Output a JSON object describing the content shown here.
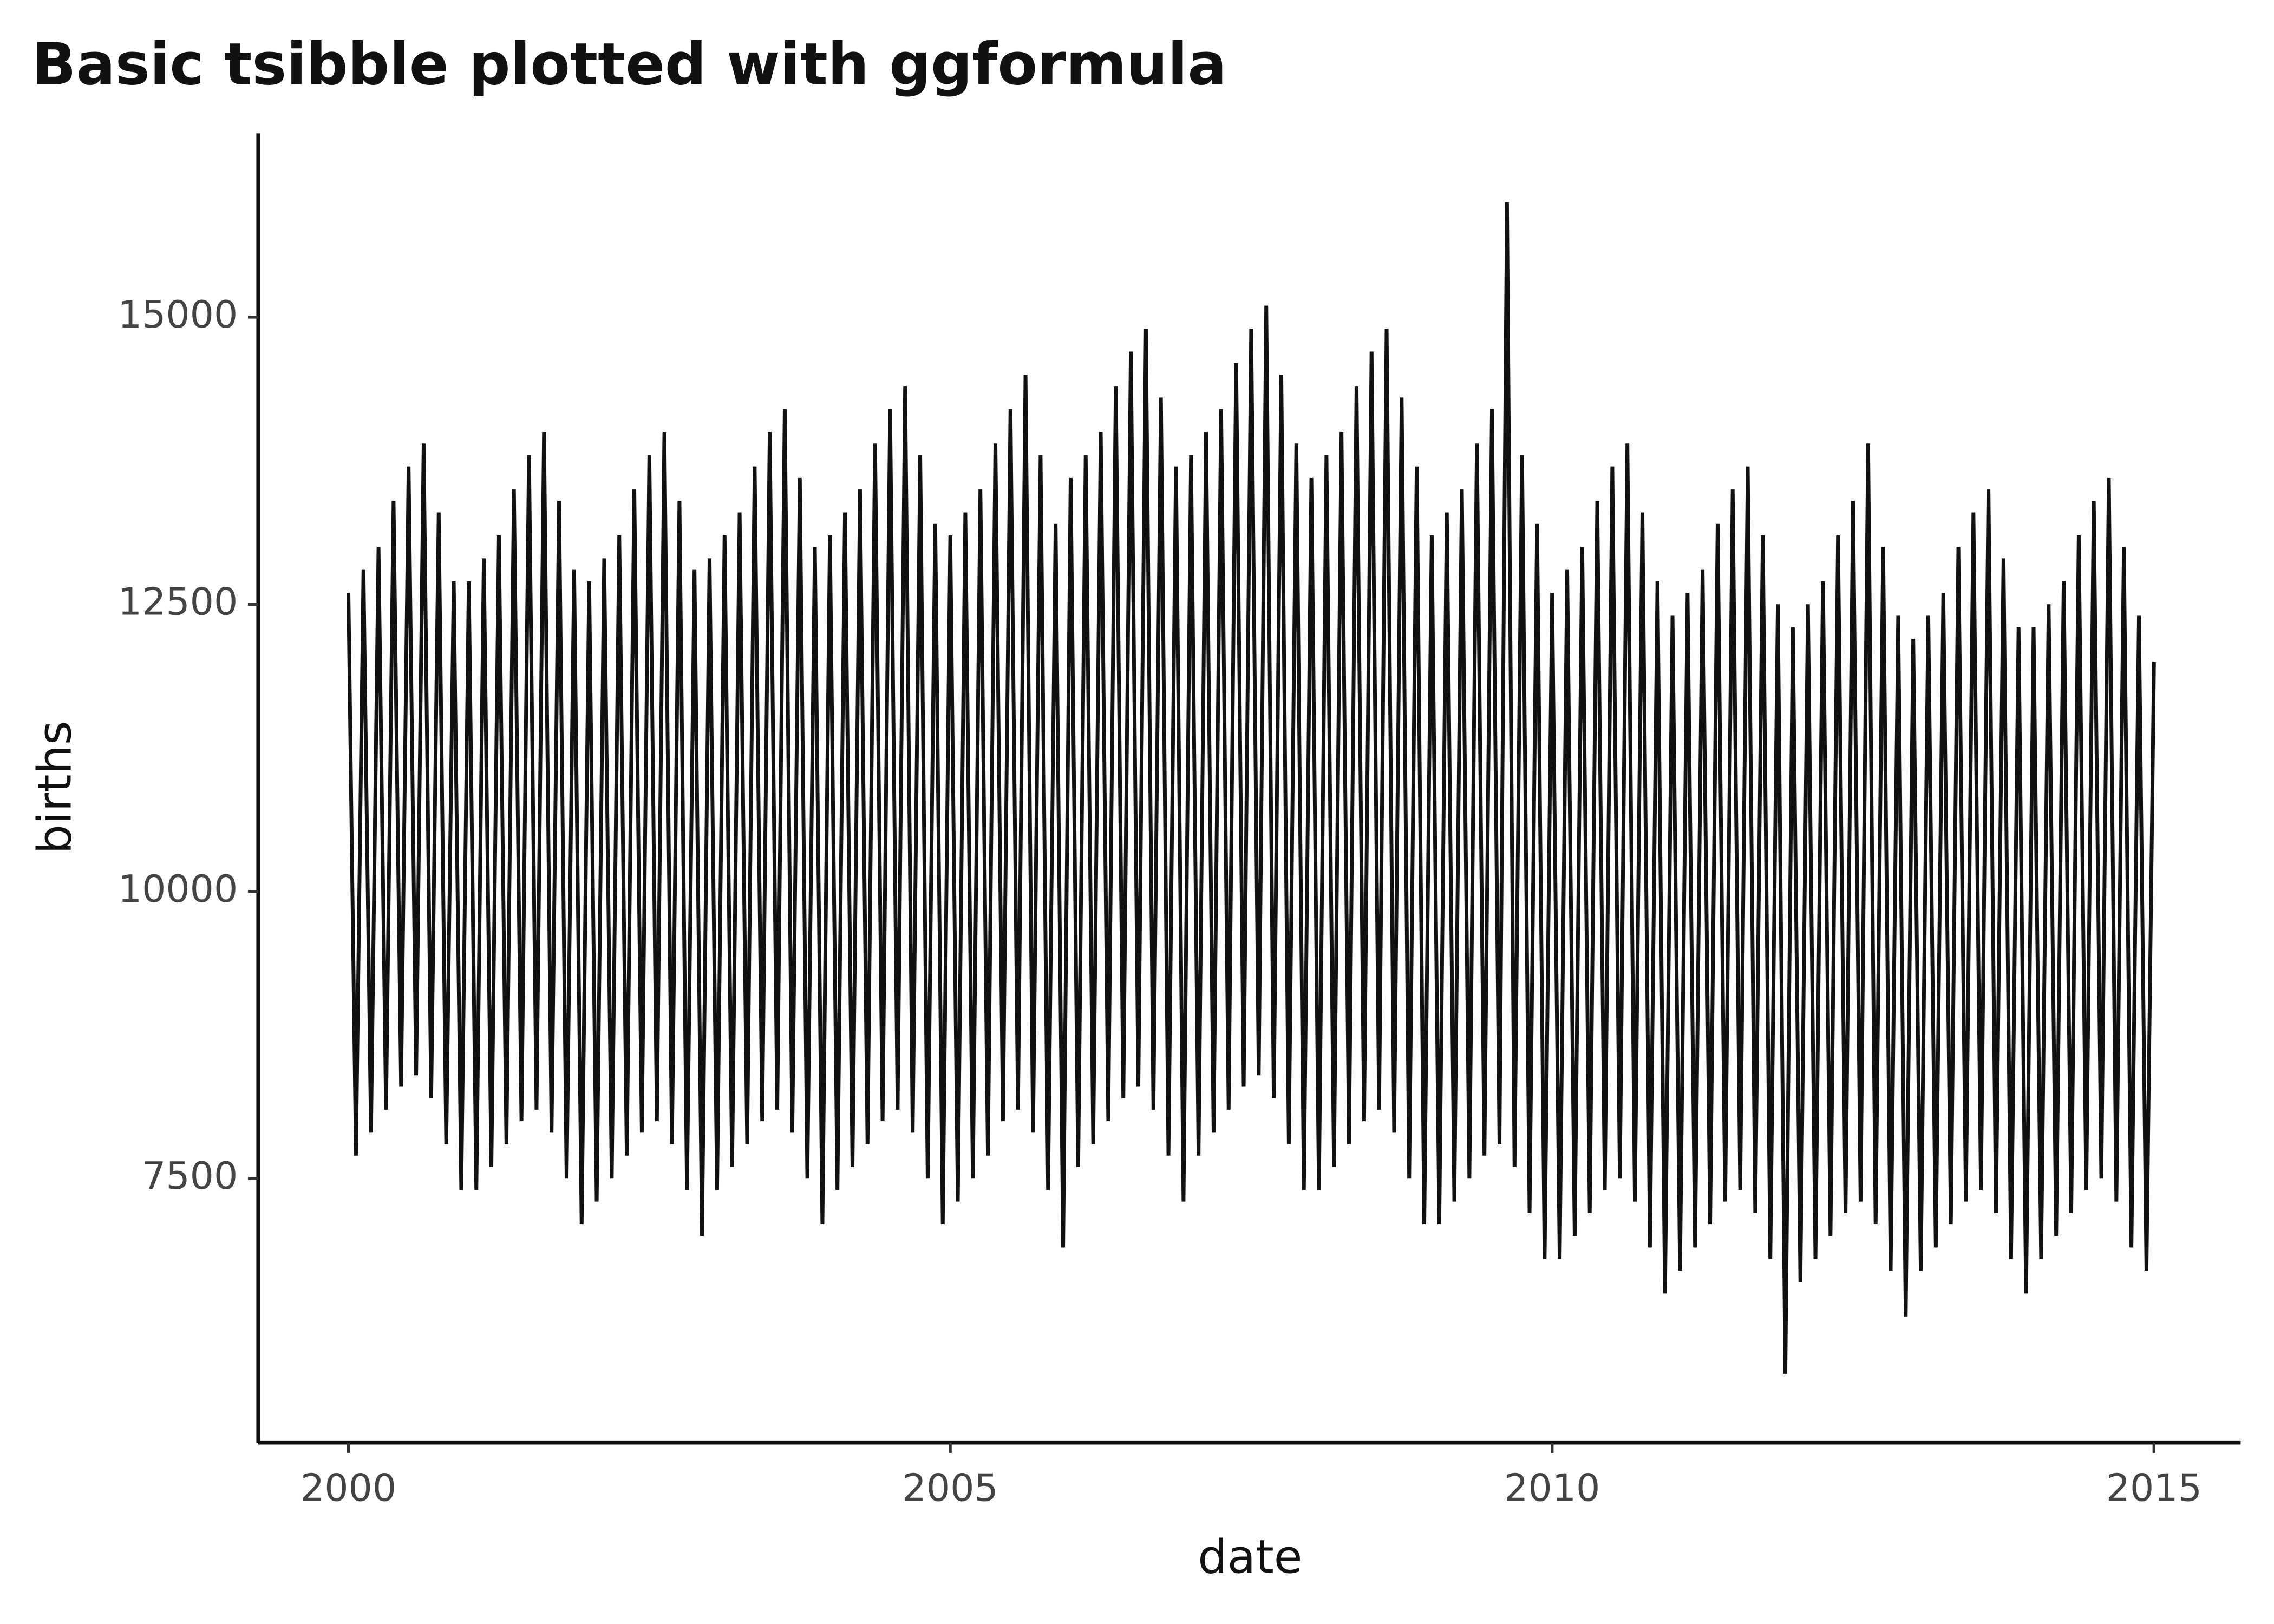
{
  "chart_data": {
    "type": "line",
    "title": "Basic tsibble plotted with ggformula",
    "x_label": "date",
    "y_label": "births",
    "color": "#111111",
    "xlim": [
      1999.25,
      2015.72
    ],
    "ylim": [
      5200,
      16600
    ],
    "xticks": [
      2000,
      2005,
      2010,
      2015
    ],
    "yticks": [
      7500,
      10000,
      12500,
      15000
    ],
    "grid": false,
    "x": [
      2000,
      2000.0625,
      2000.125,
      2000.1875,
      2000.25,
      2000.3125,
      2000.375,
      2000.4375,
      2000.5,
      2000.5625,
      2000.625,
      2000.6875,
      2000.75,
      2000.8125,
      2000.875,
      2000.9375,
      2001,
      2001.0625,
      2001.125,
      2001.1875,
      2001.25,
      2001.3125,
      2001.375,
      2001.4375,
      2001.5,
      2001.5625,
      2001.625,
      2001.6875,
      2001.75,
      2001.8125,
      2001.875,
      2001.9375,
      2002,
      2002.0625,
      2002.125,
      2002.1875,
      2002.25,
      2002.3125,
      2002.375,
      2002.4375,
      2002.5,
      2002.5625,
      2002.625,
      2002.6875,
      2002.75,
      2002.8125,
      2002.875,
      2002.9375,
      2003,
      2003.0625,
      2003.125,
      2003.1875,
      2003.25,
      2003.3125,
      2003.375,
      2003.4375,
      2003.5,
      2003.5625,
      2003.625,
      2003.6875,
      2003.75,
      2003.8125,
      2003.875,
      2003.9375,
      2004,
      2004.0625,
      2004.125,
      2004.1875,
      2004.25,
      2004.3125,
      2004.375,
      2004.4375,
      2004.5,
      2004.5625,
      2004.625,
      2004.6875,
      2004.75,
      2004.8125,
      2004.875,
      2004.9375,
      2005,
      2005.0625,
      2005.125,
      2005.1875,
      2005.25,
      2005.3125,
      2005.375,
      2005.4375,
      2005.5,
      2005.5625,
      2005.625,
      2005.6875,
      2005.75,
      2005.8125,
      2005.875,
      2005.9375,
      2006,
      2006.0625,
      2006.125,
      2006.1875,
      2006.25,
      2006.3125,
      2006.375,
      2006.4375,
      2006.5,
      2006.5625,
      2006.625,
      2006.6875,
      2006.75,
      2006.8125,
      2006.875,
      2006.9375,
      2007,
      2007.0625,
      2007.125,
      2007.1875,
      2007.25,
      2007.3125,
      2007.375,
      2007.4375,
      2007.5,
      2007.5625,
      2007.625,
      2007.6875,
      2007.75,
      2007.8125,
      2007.875,
      2007.9375,
      2008,
      2008.0625,
      2008.125,
      2008.1875,
      2008.25,
      2008.3125,
      2008.375,
      2008.4375,
      2008.5,
      2008.5625,
      2008.625,
      2008.6875,
      2008.75,
      2008.8125,
      2008.875,
      2008.9375,
      2009,
      2009.0625,
      2009.125,
      2009.1875,
      2009.25,
      2009.3125,
      2009.375,
      2009.4375,
      2009.5,
      2009.5625,
      2009.625,
      2009.6875,
      2009.75,
      2009.8125,
      2009.875,
      2009.9375,
      2010,
      2010.0625,
      2010.125,
      2010.1875,
      2010.25,
      2010.3125,
      2010.375,
      2010.4375,
      2010.5,
      2010.5625,
      2010.625,
      2010.6875,
      2010.75,
      2010.8125,
      2010.875,
      2010.9375,
      2011,
      2011.0625,
      2011.125,
      2011.1875,
      2011.25,
      2011.3125,
      2011.375,
      2011.4375,
      2011.5,
      2011.5625,
      2011.625,
      2011.6875,
      2011.75,
      2011.8125,
      2011.875,
      2011.9375,
      2012,
      2012.0625,
      2012.125,
      2012.1875,
      2012.25,
      2012.3125,
      2012.375,
      2012.4375,
      2012.5,
      2012.5625,
      2012.625,
      2012.6875,
      2012.75,
      2012.8125,
      2012.875,
      2012.9375,
      2013,
      2013.0625,
      2013.125,
      2013.1875,
      2013.25,
      2013.3125,
      2013.375,
      2013.4375,
      2013.5,
      2013.5625,
      2013.625,
      2013.6875,
      2013.75,
      2013.8125,
      2013.875,
      2013.9375,
      2014,
      2014.0625,
      2014.125,
      2014.1875,
      2014.25,
      2014.3125,
      2014.375,
      2014.4375,
      2014.5,
      2014.5625,
      2014.625,
      2014.6875,
      2014.75,
      2014.8125,
      2014.875,
      2014.9375,
      2015
    ],
    "values": [
      12600,
      7700,
      12800,
      7900,
      13000,
      8100,
      13400,
      8300,
      13700,
      8400,
      13900,
      8200,
      13300,
      7800,
      12700,
      7400,
      12700,
      7400,
      12900,
      7600,
      13100,
      7800,
      13500,
      8000,
      13800,
      8100,
      14000,
      7900,
      13400,
      7500,
      12800,
      7100,
      12700,
      7300,
      12900,
      7500,
      13100,
      7700,
      13500,
      7900,
      13800,
      8000,
      14000,
      7800,
      13400,
      7400,
      12800,
      7000,
      12900,
      7400,
      13100,
      7600,
      13300,
      7800,
      13700,
      8000,
      14000,
      8100,
      14200,
      7900,
      13600,
      7500,
      13000,
      7100,
      13100,
      7400,
      13300,
      7600,
      13500,
      7800,
      13900,
      8000,
      14200,
      8100,
      14400,
      7900,
      13800,
      7500,
      13200,
      7100,
      13100,
      7300,
      13300,
      7500,
      13500,
      7700,
      13900,
      8000,
      14200,
      8100,
      14500,
      7900,
      13800,
      7400,
      13200,
      6900,
      13600,
      7600,
      13800,
      7800,
      14000,
      8000,
      14400,
      8200,
      14700,
      8300,
      14900,
      8100,
      14300,
      7700,
      13700,
      7300,
      13800,
      7700,
      14000,
      7900,
      14200,
      8100,
      14600,
      8300,
      14900,
      8400,
      15100,
      8200,
      14500,
      7800,
      13900,
      7400,
      13600,
      7400,
      13800,
      7600,
      14000,
      7800,
      14400,
      8000,
      14700,
      8100,
      14900,
      7900,
      14300,
      7500,
      13700,
      7100,
      13100,
      7100,
      13300,
      7300,
      13500,
      7500,
      13900,
      7700,
      14200,
      7800,
      16000,
      7600,
      13800,
      7200,
      13200,
      6800,
      12600,
      6800,
      12800,
      7000,
      13000,
      7200,
      13400,
      7400,
      13700,
      7500,
      13900,
      7300,
      13300,
      6900,
      12700,
      6500,
      12400,
      6700,
      12600,
      6900,
      12800,
      7100,
      13200,
      7300,
      13500,
      7400,
      13700,
      7200,
      13100,
      6800,
      12500,
      5800,
      12300,
      6600,
      12500,
      6800,
      12700,
      7000,
      13100,
      7200,
      13400,
      7300,
      13900,
      7100,
      13000,
      6700,
      12400,
      6300,
      12200,
      6700,
      12400,
      6900,
      12600,
      7100,
      13000,
      7300,
      13300,
      7400,
      13500,
      7200,
      12900,
      6800,
      12300,
      6500,
      12300,
      6800,
      12500,
      7000,
      12700,
      7200,
      13100,
      7400,
      13400,
      7500,
      13600,
      7300,
      13000,
      6900,
      12400,
      6700,
      12000
    ]
  }
}
